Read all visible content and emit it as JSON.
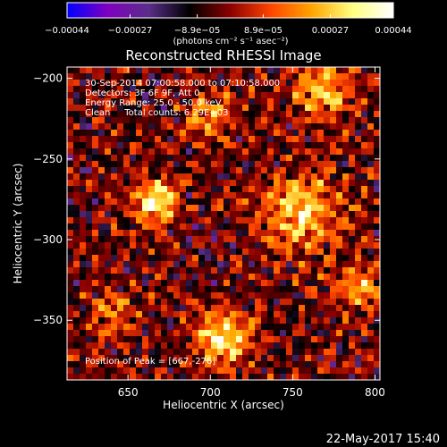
{
  "chart_data": {
    "type": "heatmap",
    "title": "Reconstructed RHESSI Image",
    "xlabel": "Heliocentric X (arcsec)",
    "ylabel": "Heliocentric Y (arcsec)",
    "xlim": [
      613,
      803
    ],
    "ylim": [
      -387,
      -193
    ],
    "xticks": [
      650,
      700,
      750,
      800
    ],
    "yticks": [
      -200,
      -250,
      -300,
      -350
    ],
    "colorbar": {
      "label": "(photons cm⁻² s⁻¹ asec⁻²)",
      "range": [
        -0.00044,
        0.00044
      ],
      "ticks": [
        -0.00044,
        -0.00027,
        -8.9e-05,
        8.9e-05,
        0.00027,
        0.00044
      ],
      "tick_labels": [
        "−0.00044",
        "−0.00027",
        "−8.9e−05",
        "8.9e−05",
        "0.00027",
        "0.00044"
      ],
      "colors": [
        "#0000ff",
        "#8000c0",
        "#5a2e8a",
        "#000000",
        "#8b0000",
        "#ff4500",
        "#ffa500",
        "#ffff80",
        "#ffffff"
      ]
    },
    "annotations": [
      "30-Sep-2014 07:00:58.000 to 07:10:58.000",
      "Detectors: 3F 6F 9F, Att 0",
      "Energy Range: 25.0 - 50.0 keV",
      "Clean     Total counts: 6.29E+03"
    ],
    "peak_label": "Position of Peak = [667,-276]",
    "peak": [
      667,
      -276
    ],
    "sources": [
      {
        "x": 667,
        "y": -276,
        "amp": 1.0,
        "w": 9
      },
      {
        "x": 755,
        "y": -283,
        "amp": 0.8,
        "w": 16
      },
      {
        "x": 708,
        "y": -360,
        "amp": 0.9,
        "w": 11
      },
      {
        "x": 768,
        "y": -208,
        "amp": 0.7,
        "w": 12
      },
      {
        "x": 700,
        "y": -225,
        "amp": 0.5,
        "w": 10
      },
      {
        "x": 640,
        "y": -345,
        "amp": 0.4,
        "w": 10
      },
      {
        "x": 790,
        "y": -330,
        "amp": 0.55,
        "w": 10
      }
    ]
  },
  "footer": {
    "timestamp": "22-May-2017 15:40"
  }
}
